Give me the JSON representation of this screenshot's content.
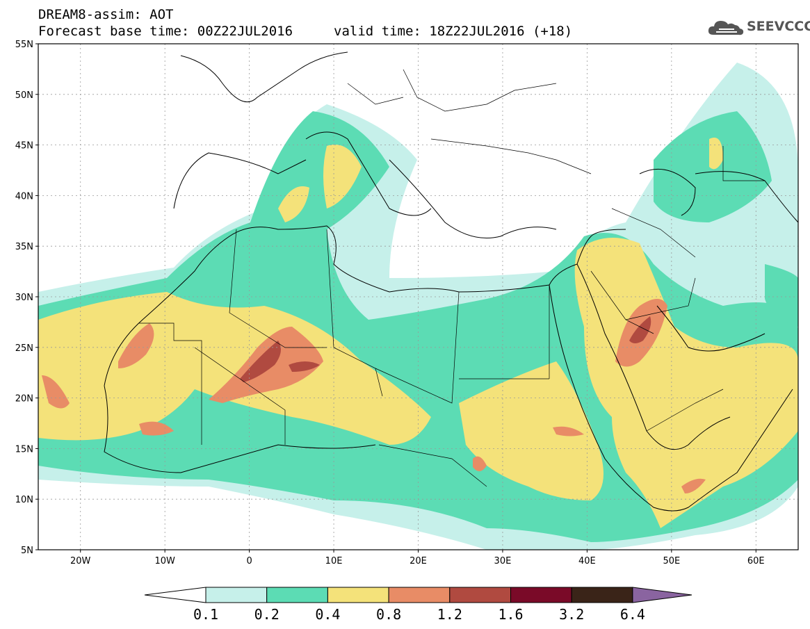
{
  "header": {
    "product_title": "DREAM8-assim: AOT",
    "base_time": "Forecast base time: 00Z22JUL2016",
    "valid_time": "valid time: 18Z22JUL2016 (+18)",
    "logo_text": "SEEVCCC"
  },
  "map": {
    "lon_range": [
      -25,
      65
    ],
    "lat_range": [
      5,
      55
    ],
    "lat_ticks": [
      "5N",
      "10N",
      "15N",
      "20N",
      "25N",
      "30N",
      "35N",
      "40N",
      "45N",
      "50N",
      "55N"
    ],
    "lon_ticks": [
      "20W",
      "10W",
      "0",
      "10E",
      "20E",
      "30E",
      "40E",
      "50E",
      "60E"
    ],
    "grid": true
  },
  "colorbar": {
    "levels": [
      "0.1",
      "0.2",
      "0.4",
      "0.8",
      "1.2",
      "1.6",
      "3.2",
      "6.4"
    ],
    "colors": [
      "#c6f0ea",
      "#5cdcb4",
      "#f4e27a",
      "#e88c66",
      "#b04a40",
      "#7a0a28",
      "#3a2418",
      "#8a64a0"
    ],
    "under_color": "#ffffff"
  }
}
